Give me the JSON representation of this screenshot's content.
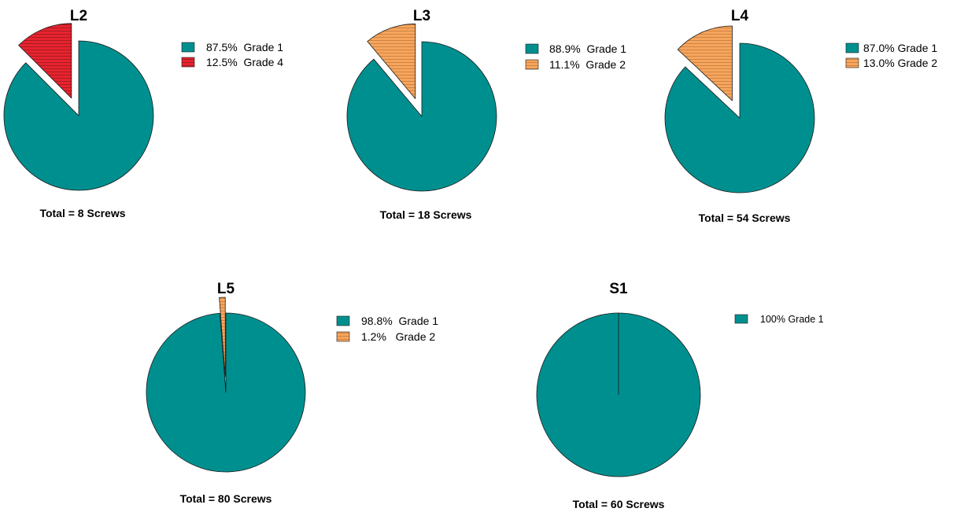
{
  "colors": {
    "grade1": "#008f8f",
    "grade2": "#f7a55c",
    "grade4": "#e8232f",
    "outline": "#1a1a1a"
  },
  "chart_data": [
    {
      "type": "pie",
      "title": "L2",
      "total_label": "Total = 8 Screws",
      "slices": [
        {
          "label": "Grade 1",
          "value": 87.5,
          "legend": "87.5%  Grade 1",
          "color": "#008f8f",
          "hatched": false,
          "exploded": false
        },
        {
          "label": "Grade 4",
          "value": 12.5,
          "legend": "12.5%  Grade 4",
          "color": "#e8232f",
          "hatched": true,
          "exploded": true
        }
      ]
    },
    {
      "type": "pie",
      "title": "L3",
      "total_label": "Total = 18 Screws",
      "slices": [
        {
          "label": "Grade 1",
          "value": 88.9,
          "legend": "88.9%  Grade 1",
          "color": "#008f8f",
          "hatched": false,
          "exploded": false
        },
        {
          "label": "Grade 2",
          "value": 11.1,
          "legend": "11.1%  Grade 2",
          "color": "#f7a55c",
          "hatched": true,
          "exploded": true
        }
      ]
    },
    {
      "type": "pie",
      "title": "L4",
      "total_label": "Total = 54 Screws",
      "slices": [
        {
          "label": "Grade 1",
          "value": 87.0,
          "legend": "87.0% Grade 1",
          "color": "#008f8f",
          "hatched": false,
          "exploded": false
        },
        {
          "label": "Grade 2",
          "value": 13.0,
          "legend": "13.0% Grade 2",
          "color": "#f7a55c",
          "hatched": true,
          "exploded": true
        }
      ]
    },
    {
      "type": "pie",
      "title": "L5",
      "total_label": "Total = 80 Screws",
      "slices": [
        {
          "label": "Grade 1",
          "value": 98.8,
          "legend": "98.8%  Grade 1",
          "color": "#008f8f",
          "hatched": false,
          "exploded": false
        },
        {
          "label": "Grade 2",
          "value": 1.2,
          "legend": "1.2%   Grade 2",
          "color": "#f7a55c",
          "hatched": true,
          "exploded": true
        }
      ]
    },
    {
      "type": "pie",
      "title": "S1",
      "total_label": "Total = 60 Screws",
      "slices": [
        {
          "label": "Grade 1",
          "value": 100,
          "legend": "100% Grade 1",
          "color": "#008f8f",
          "hatched": false,
          "exploded": false
        }
      ]
    }
  ]
}
